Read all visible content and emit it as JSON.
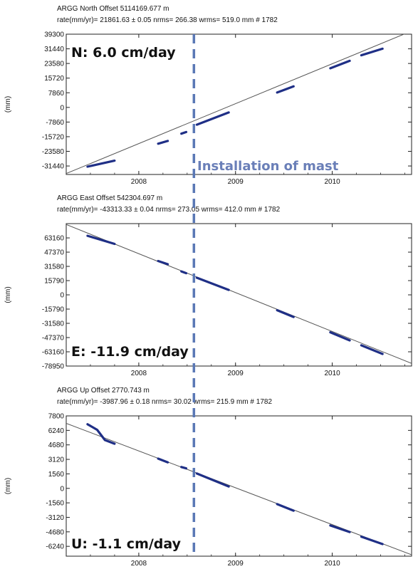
{
  "chart_data": [
    {
      "type": "scatter",
      "title": "ARGG  North Offset   5114169.677 m",
      "subtitle": "rate(mm/yr)= 21861.63 ± 0.05  nrms= 266.38  wrms= 519.0 mm # 1782",
      "ylabel": "(mm)",
      "xlabel": "",
      "xlim": [
        2007.25,
        2010.82
      ],
      "ylim": [
        -36000,
        39300
      ],
      "yticks": [
        "39300",
        "31440",
        "23580",
        "15720",
        "7860",
        "0",
        "-7860",
        "-15720",
        "-23580",
        "-31440"
      ],
      "yticks_values": [
        39300,
        31440,
        23580,
        15720,
        7860,
        0,
        -7860,
        -15720,
        -23580,
        -31440
      ],
      "xticks": [
        "2008",
        "2009",
        "2010"
      ],
      "xticks_values": [
        2008,
        2009,
        2010
      ],
      "annotation": "N: 6.0 cm/day",
      "fit_line": {
        "x": [
          2007.25,
          2010.82
        ],
        "y": [
          -35500,
          41000
        ]
      },
      "series": [
        {
          "segments": [
            {
              "x": [
                2007.47,
                2007.75
              ],
              "y": [
                -31800,
                -28600
              ]
            },
            {
              "x": [
                2008.2,
                2008.3
              ],
              "y": [
                -19500,
                -18000
              ]
            },
            {
              "x": [
                2008.44,
                2008.49
              ],
              "y": [
                -14100,
                -13200
              ]
            },
            {
              "x": [
                2008.6,
                2008.93
              ],
              "y": [
                -9300,
                -2700
              ]
            },
            {
              "x": [
                2009.43,
                2009.6
              ],
              "y": [
                8000,
                11300
              ]
            },
            {
              "x": [
                2009.98,
                2010.18
              ],
              "y": [
                21000,
                25000
              ]
            },
            {
              "x": [
                2010.3,
                2010.52
              ],
              "y": [
                28000,
                31500
              ]
            }
          ]
        }
      ]
    },
    {
      "type": "scatter",
      "title": "ARGG  East Offset   542304.697 m",
      "subtitle": "rate(mm/yr)= -43313.33 ± 0.04  nrms= 273.05  wrms= 412.0 mm # 1782",
      "ylabel": "(mm)",
      "xlabel": "",
      "xlim": [
        2007.25,
        2010.82
      ],
      "ylim": [
        -78950,
        79000
      ],
      "yticks": [
        "63160",
        "47370",
        "31580",
        "15790",
        "0",
        "-15790",
        "-31580",
        "-47370",
        "-63160",
        "-78950"
      ],
      "yticks_values": [
        63160,
        47370,
        31580,
        15790,
        0,
        -15790,
        -31580,
        -47370,
        -63160,
        -78950
      ],
      "xticks": [
        "2008",
        "2009",
        "2010"
      ],
      "xticks_values": [
        2008,
        2009,
        2010
      ],
      "annotation": "E: -11.9 cm/day",
      "fit_line": {
        "x": [
          2007.25,
          2010.82
        ],
        "y": [
          78000,
          -76000
        ]
      },
      "series": [
        {
          "segments": [
            {
              "x": [
                2007.47,
                2007.75
              ],
              "y": [
                65500,
                56500
              ]
            },
            {
              "x": [
                2008.2,
                2008.3
              ],
              "y": [
                37500,
                34000
              ]
            },
            {
              "x": [
                2008.44,
                2008.49
              ],
              "y": [
                26000,
                24000
              ]
            },
            {
              "x": [
                2008.6,
                2008.93
              ],
              "y": [
                19000,
                5500
              ]
            },
            {
              "x": [
                2009.43,
                2009.6
              ],
              "y": [
                -17000,
                -24500
              ]
            },
            {
              "x": [
                2009.98,
                2010.18
              ],
              "y": [
                -41500,
                -50500
              ]
            },
            {
              "x": [
                2010.3,
                2010.52
              ],
              "y": [
                -56000,
                -65500
              ]
            }
          ]
        }
      ]
    },
    {
      "type": "scatter",
      "title": "ARGG  Up Offset   2770.743 m",
      "subtitle": "rate(mm/yr)= -3987.96 ± 0.18  nrms= 30.02  wrms= 215.9 mm # 1782",
      "ylabel": "(mm)",
      "xlabel": "",
      "xlim": [
        2007.25,
        2010.82
      ],
      "ylim": [
        -7300,
        7800
      ],
      "yticks": [
        "7800",
        "6240",
        "4680",
        "3120",
        "1560",
        "0",
        "-1560",
        "-3120",
        "-4680",
        "-6240"
      ],
      "yticks_values": [
        7800,
        6240,
        4680,
        3120,
        1560,
        0,
        -1560,
        -3120,
        -4680,
        -6240
      ],
      "xticks": [
        "2008",
        "2009",
        "2010"
      ],
      "xticks_values": [
        2008,
        2009,
        2010
      ],
      "annotation": "U: -1.1 cm/day",
      "fit_line": {
        "x": [
          2007.25,
          2010.82
        ],
        "y": [
          7000,
          -7150
        ]
      },
      "series": [
        {
          "segments": [
            {
              "x": [
                2007.47,
                2007.57,
                2007.65,
                2007.75
              ],
              "y": [
                6900,
                6300,
                5200,
                4800
              ]
            },
            {
              "x": [
                2008.2,
                2008.3
              ],
              "y": [
                3200,
                2800
              ]
            },
            {
              "x": [
                2008.44,
                2008.49
              ],
              "y": [
                2300,
                2150
              ]
            },
            {
              "x": [
                2008.6,
                2008.93
              ],
              "y": [
                1600,
                200
              ]
            },
            {
              "x": [
                2009.43,
                2009.6
              ],
              "y": [
                -1700,
                -2400
              ]
            },
            {
              "x": [
                2009.98,
                2010.18
              ],
              "y": [
                -4000,
                -4700
              ]
            },
            {
              "x": [
                2010.3,
                2010.52
              ],
              "y": [
                -5200,
                -6000
              ]
            }
          ]
        }
      ]
    }
  ],
  "mast_annotation": "Installation of mast",
  "mast_year": 2008.57,
  "colors": {
    "data": "#1f2f86",
    "line": "#555555",
    "mast": "#5a78b5",
    "frame": "#222222"
  }
}
